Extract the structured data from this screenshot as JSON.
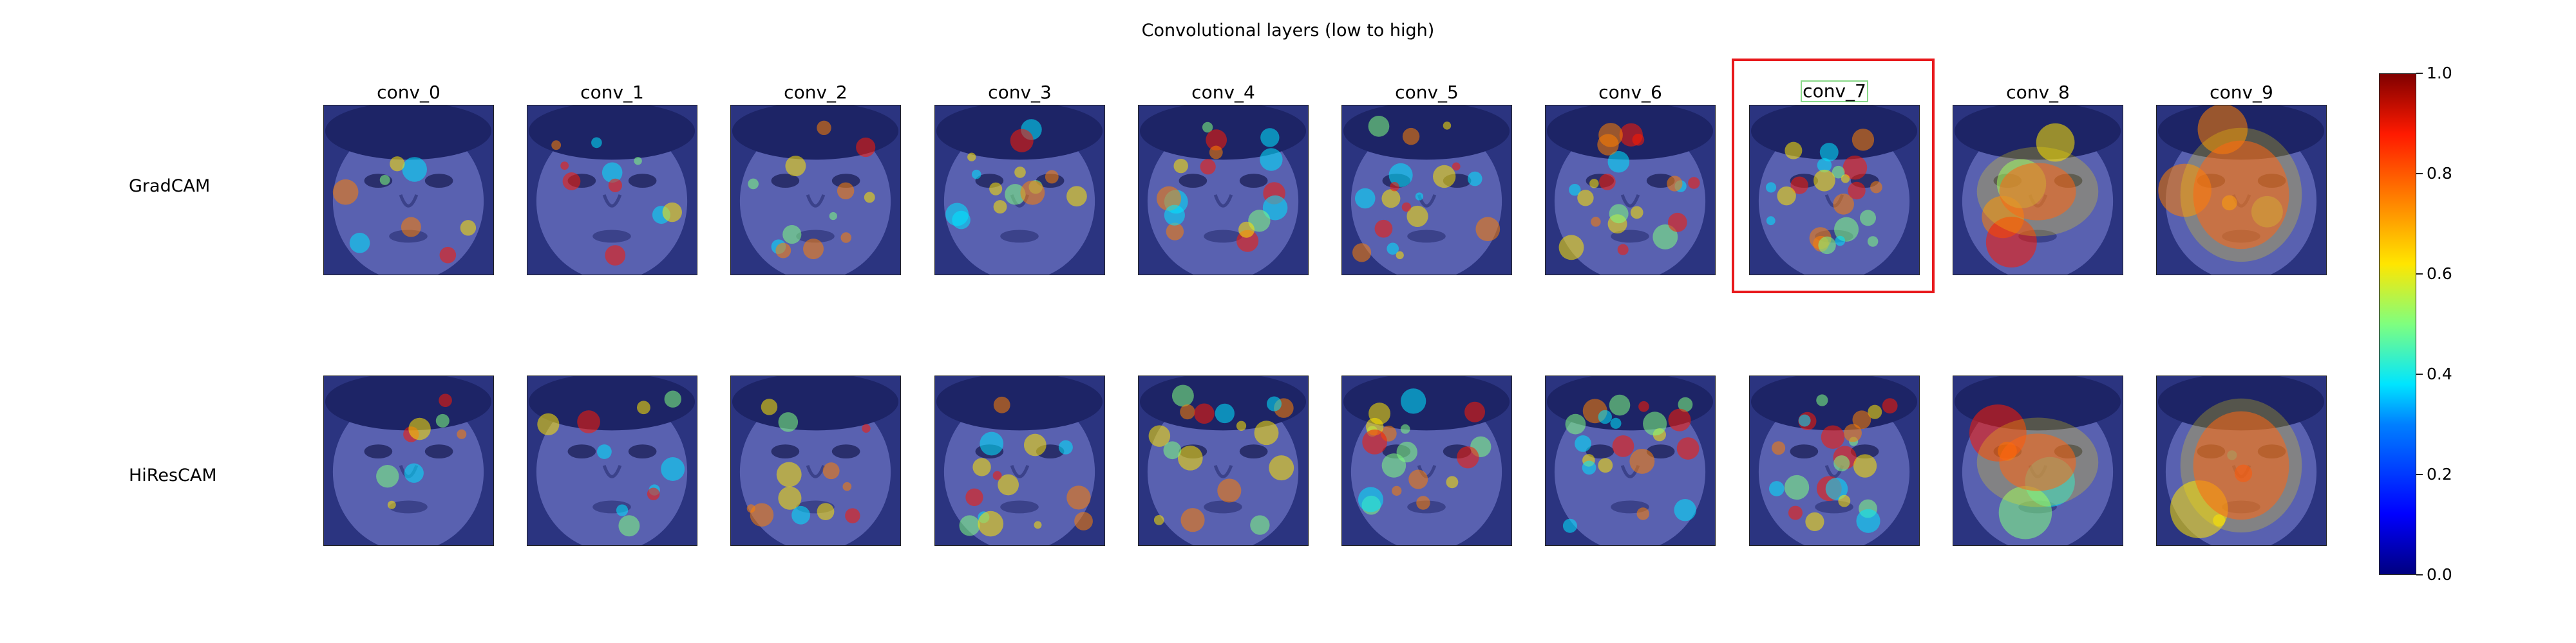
{
  "figure": {
    "title": "Convolutional layers (low to high)",
    "rows": [
      "GradCAM",
      "HiResCAM"
    ],
    "columns": [
      "conv_0",
      "conv_1",
      "conv_2",
      "conv_3",
      "conv_4",
      "conv_5",
      "conv_6",
      "conv_7",
      "conv_8",
      "conv_9"
    ],
    "highlighted_column": "conv_7",
    "highlight_color": "#e8191c",
    "colorbar": {
      "colormap": "jet",
      "ticks": [
        "0.0",
        "0.2",
        "0.4",
        "0.6",
        "0.8",
        "1.0"
      ]
    }
  }
}
